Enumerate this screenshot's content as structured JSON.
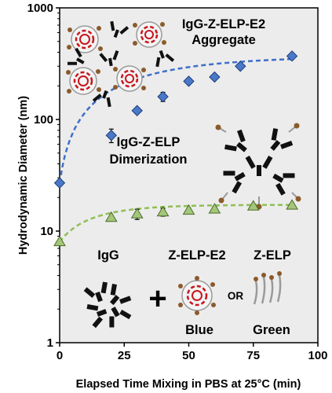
{
  "chart_data": {
    "type": "scatter",
    "xlabel": "Elapsed Time Mixing in PBS at 25°C (min)",
    "ylabel": "Hydrodynamic Diameter (nm)",
    "xlim": [
      0,
      100
    ],
    "ylim": [
      1,
      1000
    ],
    "yscale": "log",
    "grid": false,
    "x_ticks": [
      "0",
      "25",
      "50",
      "75",
      "100"
    ],
    "y_ticks": [
      "1",
      "10",
      "100",
      "1000"
    ],
    "series": [
      {
        "name": "Blue",
        "color": "#4a78c8",
        "marker": "diamond",
        "fit_line": "dashed",
        "x": [
          0,
          20,
          30,
          40,
          50,
          60,
          70,
          90
        ],
        "y": [
          27,
          72,
          120,
          160,
          220,
          240,
          300,
          370
        ],
        "err": [
          0,
          10,
          0,
          15,
          0,
          0,
          0,
          0
        ]
      },
      {
        "name": "Green",
        "color": "#a3c77a",
        "marker": "triangle",
        "fit_line": "dashed",
        "x": [
          0,
          20,
          30,
          40,
          50,
          60,
          75,
          90
        ],
        "y": [
          8,
          13.2,
          14.2,
          14.8,
          15.3,
          15.7,
          16.7,
          17.0
        ],
        "err": [
          0,
          0,
          1.5,
          1.2,
          0.6,
          0.8,
          0,
          0
        ]
      }
    ],
    "annotations": {
      "aggregate_line1": "IgG-Z-ELP-E2",
      "aggregate_line2": "Aggregate",
      "dimer_line1": "IgG-Z-ELP",
      "dimer_line2": "Dimerization",
      "legend_igg": "IgG",
      "legend_z_elp_e2": "Z-ELP-E2",
      "legend_z_elp": "Z-ELP",
      "legend_plus": "+",
      "legend_or": "OR",
      "legend_blue": "Blue",
      "legend_green": "Green"
    }
  }
}
